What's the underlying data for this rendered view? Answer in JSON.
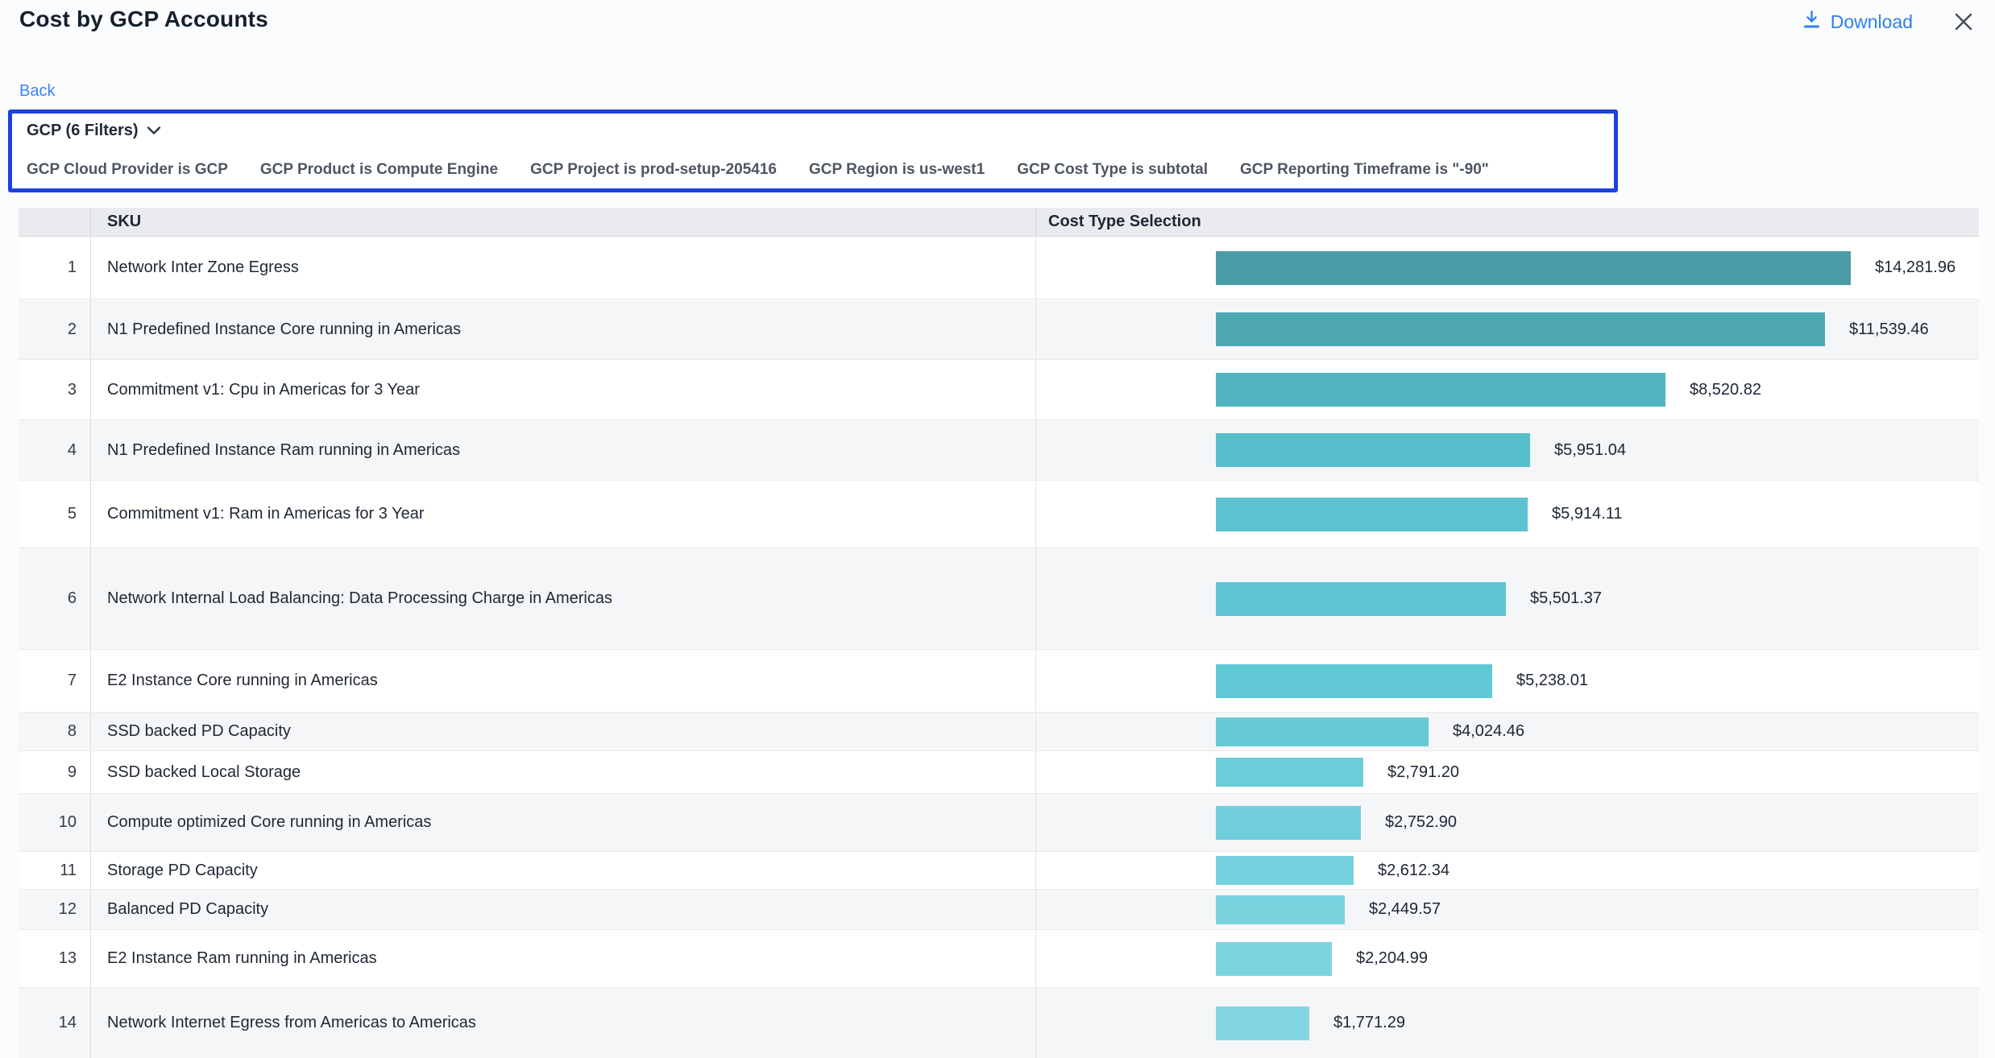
{
  "header": {
    "title": "Cost by GCP Accounts",
    "download_label": "Download"
  },
  "nav": {
    "back_label": "Back"
  },
  "filter_bar": {
    "summary_label": "GCP (6 Filters)",
    "border_color": "#1d40e0",
    "filters": [
      "GCP Cloud Provider is GCP",
      "GCP Product is Compute Engine",
      "GCP Project is prod-setup-205416",
      "GCP Region is us-west1",
      "GCP Cost Type is subtotal",
      "GCP Reporting Timeframe is \"-90\""
    ]
  },
  "table": {
    "columns": [
      "SKU",
      "Cost Type Selection"
    ]
  },
  "chart_data": {
    "type": "bar",
    "orientation": "horizontal",
    "title": "Cost by GCP Accounts",
    "category_label": "SKU",
    "value_label": "Cost Type Selection",
    "value_range": [
      0,
      14281.96
    ],
    "accent_color_max": "#4a9da8",
    "accent_color_min": "#82d6e3",
    "rows": [
      {
        "rank": 1,
        "sku": "Network Inter Zone Egress",
        "value": 14281.96,
        "label": "$14,281.96",
        "color": "#4a9da8"
      },
      {
        "rank": 2,
        "sku": "N1 Predefined Instance Core running in Americas",
        "value": 11539.46,
        "label": "$11,539.46",
        "color": "#4da8b4"
      },
      {
        "rank": 3,
        "sku": "Commitment v1: Cpu in Americas for 3 Year",
        "value": 8520.82,
        "label": "$8,520.82",
        "color": "#51b4c1"
      },
      {
        "rank": 4,
        "sku": "N1 Predefined Instance Ram running in Americas",
        "value": 5951.04,
        "label": "$5,951.04",
        "color": "#57bfcc"
      },
      {
        "rank": 5,
        "sku": "Commitment v1: Ram in Americas for 3 Year",
        "value": 5914.11,
        "label": "$5,914.11",
        "color": "#5bc3d0"
      },
      {
        "rank": 6,
        "sku": "Network Internal Load Balancing: Data Processing Charge in Americas",
        "value": 5501.37,
        "label": "$5,501.37",
        "color": "#5ec6d2"
      },
      {
        "rank": 7,
        "sku": "E2 Instance Core running in Americas",
        "value": 5238.01,
        "label": "$5,238.01",
        "color": "#60c8d4"
      },
      {
        "rank": 8,
        "sku": "SSD backed PD Capacity",
        "value": 4024.46,
        "label": "$4,024.46",
        "color": "#66cbd7"
      },
      {
        "rank": 9,
        "sku": "SSD backed Local Storage",
        "value": 2791.2,
        "label": "$2,791.20",
        "color": "#6ccdd9"
      },
      {
        "rank": 10,
        "sku": "Compute optimized Core running in Americas",
        "value": 2752.9,
        "label": "$2,752.90",
        "color": "#70cfdb"
      },
      {
        "rank": 11,
        "sku": "Storage PD Capacity",
        "value": 2612.34,
        "label": "$2,612.34",
        "color": "#74d1dd"
      },
      {
        "rank": 12,
        "sku": "Balanced PD Capacity",
        "value": 2449.57,
        "label": "$2,449.57",
        "color": "#78d3df"
      },
      {
        "rank": 13,
        "sku": "E2 Instance Ram running in Americas",
        "value": 2204.99,
        "label": "$2,204.99",
        "color": "#7dd4e1"
      },
      {
        "rank": 14,
        "sku": "Network Internet Egress from Americas to Americas",
        "value": 1771.29,
        "label": "$1,771.29",
        "color": "#82d6e3"
      }
    ]
  }
}
